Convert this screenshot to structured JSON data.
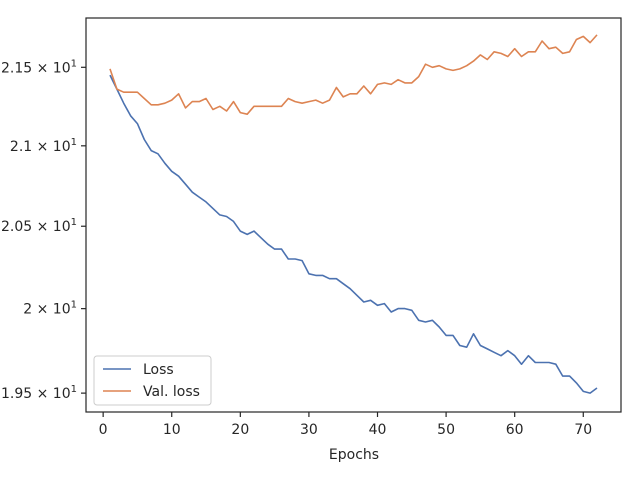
{
  "chart_data": {
    "type": "line",
    "xlabel": "Epochs",
    "ylabel": "",
    "xlim": [
      -2.5,
      75.5
    ],
    "ylim": [
      19.39,
      21.82
    ],
    "yscale": "log",
    "x_ticks": [
      0,
      10,
      20,
      30,
      40,
      50,
      60,
      70
    ],
    "y_ticks": [
      {
        "value": 19.5,
        "mantissa": "1.95",
        "base": "10",
        "exp": "1"
      },
      {
        "value": 20.0,
        "mantissa": "2",
        "base": "10",
        "exp": "1"
      },
      {
        "value": 20.5,
        "mantissa": "2.05",
        "base": "10",
        "exp": "1"
      },
      {
        "value": 21.0,
        "mantissa": "2.1",
        "base": "10",
        "exp": "1"
      },
      {
        "value": 21.5,
        "mantissa": "2.15",
        "base": "10",
        "exp": "1"
      }
    ],
    "grid": false,
    "legend_position": "lower-left",
    "x": [
      1,
      2,
      3,
      4,
      5,
      6,
      7,
      8,
      9,
      10,
      11,
      12,
      13,
      14,
      15,
      16,
      17,
      18,
      19,
      20,
      21,
      22,
      23,
      24,
      25,
      26,
      27,
      28,
      29,
      30,
      31,
      32,
      33,
      34,
      35,
      36,
      37,
      38,
      39,
      40,
      41,
      42,
      43,
      44,
      45,
      46,
      47,
      48,
      49,
      50,
      51,
      52,
      53,
      54,
      55,
      56,
      57,
      58,
      59,
      60,
      61,
      62,
      63,
      64,
      65,
      66,
      67,
      68,
      69,
      70,
      71,
      72
    ],
    "series": [
      {
        "name": "Loss",
        "color": "#4c72b0",
        "values": [
          21.45,
          21.36,
          21.27,
          21.19,
          21.14,
          21.04,
          20.97,
          20.95,
          20.89,
          20.84,
          20.81,
          20.76,
          20.71,
          20.68,
          20.65,
          20.61,
          20.57,
          20.56,
          20.53,
          20.47,
          20.45,
          20.47,
          20.43,
          20.39,
          20.36,
          20.36,
          20.3,
          20.3,
          20.29,
          20.21,
          20.2,
          20.2,
          20.18,
          20.18,
          20.15,
          20.12,
          20.08,
          20.04,
          20.05,
          20.02,
          20.03,
          19.98,
          20.0,
          20.0,
          19.99,
          19.93,
          19.92,
          19.93,
          19.89,
          19.84,
          19.84,
          19.78,
          19.77,
          19.85,
          19.78,
          19.76,
          19.74,
          19.72,
          19.75,
          19.72,
          19.67,
          19.72,
          19.68,
          19.68,
          19.68,
          19.67,
          19.6,
          19.6,
          19.56,
          19.51,
          19.5,
          19.53
        ]
      },
      {
        "name": "Val. loss",
        "color": "#dd8452",
        "values": [
          21.49,
          21.36,
          21.34,
          21.34,
          21.34,
          21.3,
          21.26,
          21.26,
          21.27,
          21.29,
          21.33,
          21.24,
          21.28,
          21.28,
          21.3,
          21.23,
          21.25,
          21.22,
          21.28,
          21.21,
          21.2,
          21.25,
          21.25,
          21.25,
          21.25,
          21.25,
          21.3,
          21.28,
          21.27,
          21.28,
          21.29,
          21.27,
          21.29,
          21.37,
          21.31,
          21.33,
          21.33,
          21.38,
          21.33,
          21.39,
          21.4,
          21.39,
          21.42,
          21.4,
          21.4,
          21.44,
          21.52,
          21.5,
          21.51,
          21.49,
          21.48,
          21.49,
          21.51,
          21.54,
          21.58,
          21.55,
          21.6,
          21.59,
          21.57,
          21.62,
          21.57,
          21.6,
          21.6,
          21.67,
          21.62,
          21.63,
          21.59,
          21.6,
          21.68,
          21.7,
          21.66,
          21.71
        ]
      }
    ]
  }
}
